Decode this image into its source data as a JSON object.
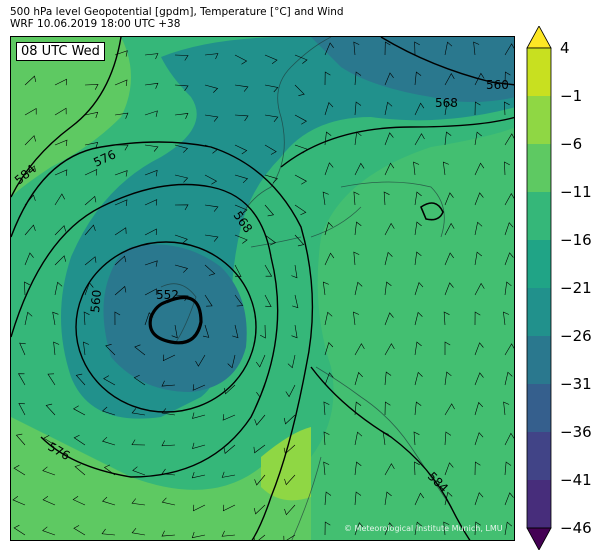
{
  "header": {
    "title_line1": "500 hPa level Geopotential [gpdm], Temperature [°C] and Wind",
    "title_line2": "WRF 10.06.2019 18:00 UTC +38"
  },
  "map": {
    "time_label": "08 UTC Wed",
    "copyright": "© Meteorological Institute Munich, LMU",
    "contour_labels": [
      "560",
      "568",
      "576",
      "584",
      "552",
      "560",
      "568",
      "576",
      "584"
    ]
  },
  "colorbar": {
    "tick_labels": [
      "4",
      "−1",
      "−6",
      "−11",
      "−16",
      "−21",
      "−26",
      "−31",
      "−36",
      "−41",
      "−46"
    ],
    "colors": [
      "#fde725",
      "#c8e020",
      "#8fd744",
      "#5ec962",
      "#35b779",
      "#20a486",
      "#21918c",
      "#2a788e",
      "#355f8d",
      "#414487",
      "#472d7b",
      "#440154"
    ]
  }
}
